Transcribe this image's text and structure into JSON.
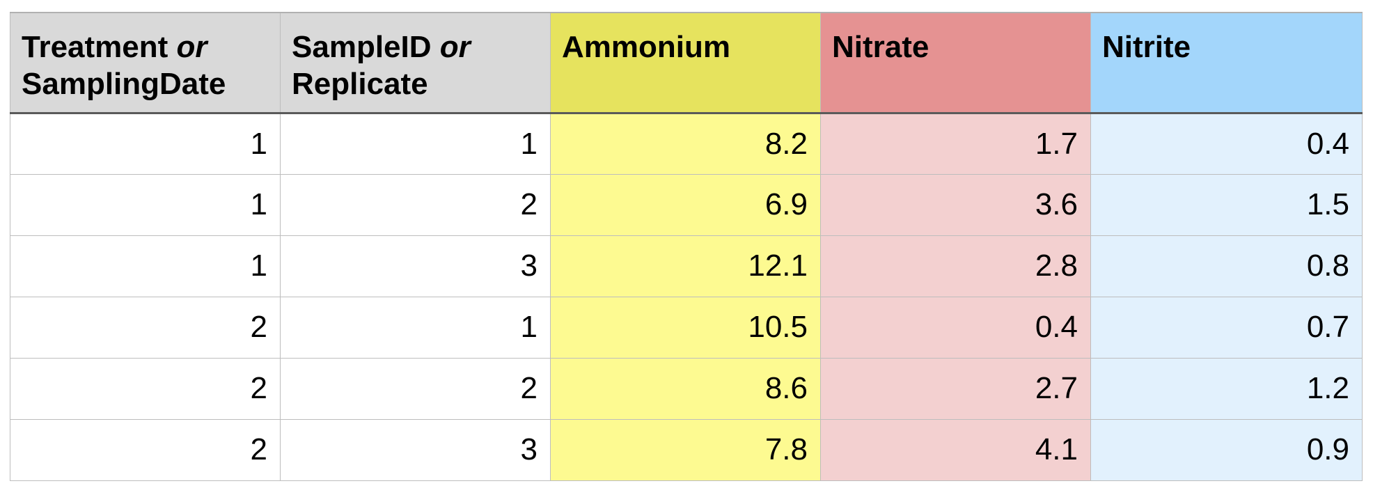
{
  "table": {
    "headers": {
      "col1": {
        "main": "Treatment",
        "or": "or",
        "sub": "SamplingDate"
      },
      "col2": {
        "main": "SampleID",
        "or": "or",
        "sub": "Replicate"
      },
      "col3": "Ammonium",
      "col4": "Nitrate",
      "col5": "Nitrite"
    },
    "rows": [
      [
        "1",
        "1",
        "8.2",
        "1.7",
        "0.4"
      ],
      [
        "1",
        "2",
        "6.9",
        "3.6",
        "1.5"
      ],
      [
        "1",
        "3",
        "12.1",
        "2.8",
        "0.8"
      ],
      [
        "2",
        "1",
        "10.5",
        "0.4",
        "0.7"
      ],
      [
        "2",
        "2",
        "8.6",
        "2.7",
        "1.2"
      ],
      [
        "2",
        "3",
        "7.8",
        "4.1",
        "0.9"
      ]
    ]
  },
  "colors": {
    "header_grey": "#d9d9d9",
    "ammonium_header": "#e6e35e",
    "ammonium_cell": "#fdfa91",
    "nitrate_header": "#e59292",
    "nitrate_cell": "#f3d0d0",
    "nitrite_header": "#a3d6fb",
    "nitrite_cell": "#e2f1fd"
  }
}
